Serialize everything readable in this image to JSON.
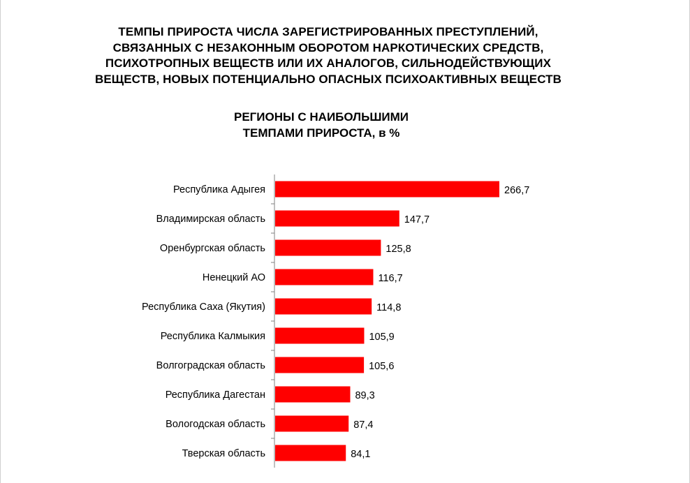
{
  "chart_data": {
    "type": "bar",
    "orientation": "horizontal",
    "title_lines": [
      "ТЕМПЫ ПРИРОСТА ЧИСЛА ЗАРЕГИСТРИРОВАННЫХ ПРЕСТУПЛЕНИЙ,",
      "СВЯЗАННЫХ С НЕЗАКОННЫМ ОБОРОТОМ НАРКОТИЧЕСКИХ СРЕДСТВ,",
      "ПСИХОТРОПНЫХ ВЕЩЕСТВ ИЛИ ИХ АНАЛОГОВ, СИЛЬНОДЕЙСТВУЮЩИХ",
      "ВЕЩЕСТВ, НОВЫХ ПОТЕНЦИАЛЬНО ОПАСНЫХ ПСИХОАКТИВНЫХ ВЕЩЕСТВ"
    ],
    "subtitle_lines": [
      "РЕГИОНЫ С НАИБОЛЬШИМИ",
      "ТЕМПАМИ ПРИРОСТА, в %"
    ],
    "categories": [
      "Республика Адыгея",
      "Владимирская область",
      "Оренбургская область",
      "Ненецкий АО",
      "Республика Саха (Якутия)",
      "Республика Калмыкия",
      "Волгоградская область",
      "Республика Дагестан",
      "Вологодская область",
      "Тверская область"
    ],
    "values": [
      266.7,
      147.7,
      125.8,
      116.7,
      114.8,
      105.9,
      105.6,
      89.3,
      87.4,
      84.1
    ],
    "value_labels": [
      "266,7",
      "147,7",
      "125,8",
      "116,7",
      "114,8",
      "105,9",
      "105,6",
      "89,3",
      "87,4",
      "84,1"
    ],
    "bar_color": "#ff0000",
    "grid": false,
    "legend": false
  }
}
